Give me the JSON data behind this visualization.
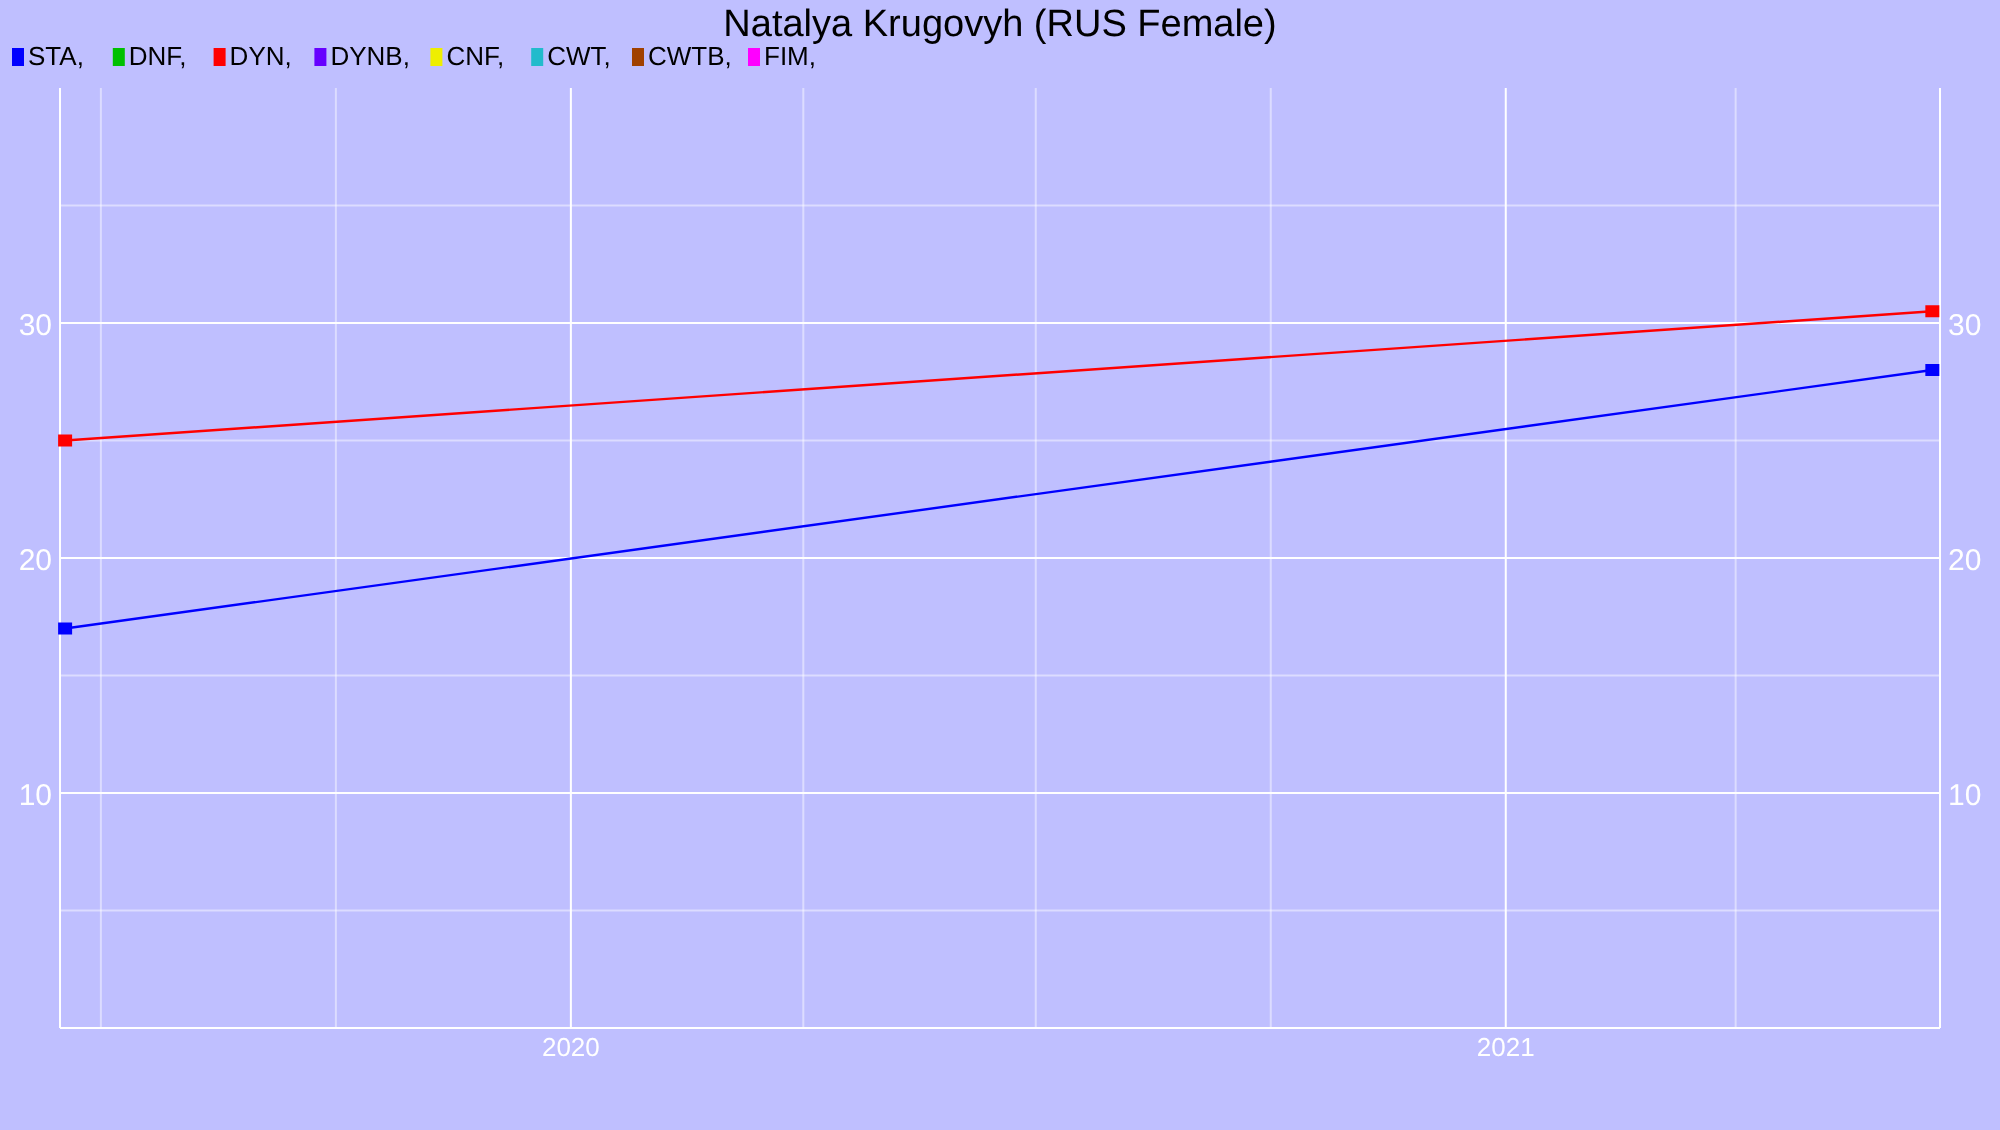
{
  "chart_data": {
    "type": "line",
    "title": "Natalya Krugovyh (RUS Female)",
    "x": [
      "2019-06-17",
      "2021-06-17"
    ],
    "series": [
      {
        "name": "STA,",
        "color": "#0000ff",
        "values": [
          17,
          28
        ]
      },
      {
        "name": "DNF,",
        "color": "#00c000",
        "values": [
          null,
          null
        ]
      },
      {
        "name": "DYN,",
        "color": "#ff0000",
        "values": [
          25,
          30.5
        ]
      },
      {
        "name": "DYNB,",
        "color": "#6600ff",
        "values": [
          null,
          null
        ]
      },
      {
        "name": "CNF,",
        "color": "#eeee00",
        "values": [
          null,
          null
        ]
      },
      {
        "name": "CWT,",
        "color": "#22bbcc",
        "values": [
          null,
          null
        ]
      },
      {
        "name": "CWTB,",
        "color": "#a04000",
        "values": [
          null,
          null
        ]
      },
      {
        "name": "FIM,",
        "color": "#ff00ff",
        "values": [
          null,
          null
        ]
      }
    ],
    "xlim": [
      "2019-06-15",
      "2021-06-20"
    ],
    "xticks": [
      {
        "value": "2019-07-01",
        "label": null
      },
      {
        "value": "2019-10-01",
        "label": null
      },
      {
        "value": "2020-01-01",
        "label": "2020"
      },
      {
        "value": "2020-04-01",
        "label": null
      },
      {
        "value": "2020-07-01",
        "label": null
      },
      {
        "value": "2020-10-01",
        "label": null
      },
      {
        "value": "2021-01-01",
        "label": "2021"
      },
      {
        "value": "2021-04-01",
        "label": null
      }
    ],
    "ylim": [
      0,
      40
    ],
    "yticks": [
      {
        "value": 5,
        "label": null
      },
      10,
      {
        "value": 15,
        "label": null
      },
      20,
      {
        "value": 25,
        "label": null
      },
      30,
      {
        "value": 35,
        "label": null
      }
    ],
    "y2lim": [
      0,
      40
    ],
    "y2ticks": [
      10,
      20,
      30
    ],
    "grid": true,
    "legend": "top left",
    "marker": "square",
    "line_style": "solid"
  }
}
